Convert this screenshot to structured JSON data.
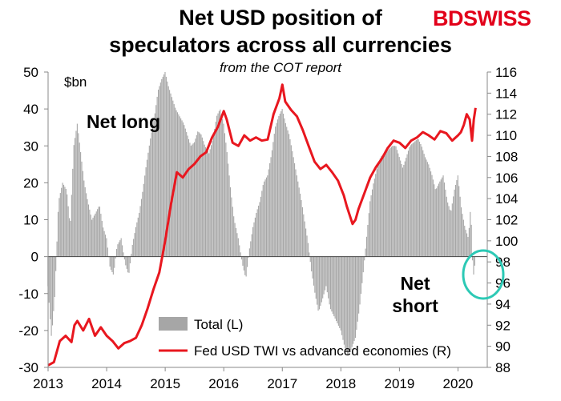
{
  "title_line1": "Net USD position of",
  "title_line2": "speculators across all currencies",
  "subtitle": "from the COT report",
  "brand": {
    "part1": "BD",
    "part2": "SWISS"
  },
  "chart_data": {
    "type": "bar",
    "title": "Net USD position of speculators across all currencies",
    "subtitle": "from the COT report",
    "left_axis": {
      "unit_label": "$bn",
      "ylim": [
        -30,
        50
      ],
      "ticks": [
        "50",
        "40",
        "30",
        "20",
        "10",
        "0",
        "-10",
        "-20",
        "-30"
      ]
    },
    "right_axis": {
      "ylim": [
        88,
        116
      ],
      "ticks": [
        "116",
        "114",
        "112",
        "110",
        "108",
        "106",
        "104",
        "102",
        "100",
        "98",
        "96",
        "94",
        "92",
        "90",
        "88"
      ]
    },
    "x_axis": {
      "xlim": [
        2013.0,
        2020.5
      ],
      "ticks": [
        "2013",
        "2014",
        "2015",
        "2016",
        "2017",
        "2018",
        "2019",
        "2020"
      ]
    },
    "annotations": {
      "net_long": "Net long",
      "net_short_line1": "Net",
      "net_short_line2": "short"
    },
    "legend": [
      {
        "label": "Total (L)",
        "color": "#a6a6a6",
        "kind": "bar"
      },
      {
        "label": "Fed USD TWI vs advanced economies (R)",
        "color": "#e8171f",
        "kind": "line"
      }
    ],
    "series": [
      {
        "name": "Total (L)",
        "axis": "left",
        "color": "#a6a6a6",
        "points": [
          [
            2013.0,
            -8
          ],
          [
            2013.06,
            -22
          ],
          [
            2013.12,
            -10
          ],
          [
            2013.18,
            15
          ],
          [
            2013.25,
            20
          ],
          [
            2013.32,
            18
          ],
          [
            2013.38,
            8
          ],
          [
            2013.44,
            30
          ],
          [
            2013.5,
            36
          ],
          [
            2013.56,
            28
          ],
          [
            2013.62,
            20
          ],
          [
            2013.68,
            15
          ],
          [
            2013.75,
            10
          ],
          [
            2013.82,
            12
          ],
          [
            2013.88,
            14
          ],
          [
            2013.94,
            8
          ],
          [
            2014.0,
            5
          ],
          [
            2014.06,
            -3
          ],
          [
            2014.12,
            -5
          ],
          [
            2014.18,
            3
          ],
          [
            2014.25,
            5
          ],
          [
            2014.32,
            -2
          ],
          [
            2014.38,
            -5
          ],
          [
            2014.44,
            3
          ],
          [
            2014.5,
            8
          ],
          [
            2014.56,
            12
          ],
          [
            2014.62,
            18
          ],
          [
            2014.68,
            25
          ],
          [
            2014.75,
            32
          ],
          [
            2014.82,
            38
          ],
          [
            2014.88,
            45
          ],
          [
            2014.94,
            48
          ],
          [
            2015.0,
            50
          ],
          [
            2015.06,
            46
          ],
          [
            2015.12,
            43
          ],
          [
            2015.18,
            40
          ],
          [
            2015.25,
            38
          ],
          [
            2015.32,
            36
          ],
          [
            2015.38,
            33
          ],
          [
            2015.44,
            30
          ],
          [
            2015.5,
            31
          ],
          [
            2015.56,
            34
          ],
          [
            2015.62,
            33
          ],
          [
            2015.68,
            30
          ],
          [
            2015.75,
            28
          ],
          [
            2015.82,
            32
          ],
          [
            2015.88,
            38
          ],
          [
            2015.94,
            40
          ],
          [
            2016.0,
            36
          ],
          [
            2016.06,
            28
          ],
          [
            2016.12,
            18
          ],
          [
            2016.18,
            10
          ],
          [
            2016.25,
            5
          ],
          [
            2016.32,
            -2
          ],
          [
            2016.38,
            -6
          ],
          [
            2016.44,
            2
          ],
          [
            2016.5,
            8
          ],
          [
            2016.56,
            12
          ],
          [
            2016.62,
            15
          ],
          [
            2016.68,
            20
          ],
          [
            2016.75,
            22
          ],
          [
            2016.82,
            28
          ],
          [
            2016.88,
            35
          ],
          [
            2016.94,
            38
          ],
          [
            2017.0,
            40
          ],
          [
            2017.06,
            36
          ],
          [
            2017.12,
            33
          ],
          [
            2017.18,
            28
          ],
          [
            2017.25,
            22
          ],
          [
            2017.32,
            16
          ],
          [
            2017.38,
            10
          ],
          [
            2017.44,
            4
          ],
          [
            2017.5,
            -4
          ],
          [
            2017.56,
            -10
          ],
          [
            2017.62,
            -15
          ],
          [
            2017.68,
            -12
          ],
          [
            2017.75,
            -8
          ],
          [
            2017.82,
            -14
          ],
          [
            2017.88,
            -16
          ],
          [
            2017.94,
            -18
          ],
          [
            2018.0,
            -20
          ],
          [
            2018.06,
            -24
          ],
          [
            2018.12,
            -27
          ],
          [
            2018.18,
            -25
          ],
          [
            2018.25,
            -22
          ],
          [
            2018.32,
            -14
          ],
          [
            2018.38,
            -5
          ],
          [
            2018.44,
            5
          ],
          [
            2018.5,
            15
          ],
          [
            2018.56,
            20
          ],
          [
            2018.62,
            24
          ],
          [
            2018.68,
            27
          ],
          [
            2018.75,
            28
          ],
          [
            2018.82,
            29
          ],
          [
            2018.88,
            30
          ],
          [
            2018.94,
            30
          ],
          [
            2019.0,
            27
          ],
          [
            2019.06,
            24
          ],
          [
            2019.12,
            27
          ],
          [
            2019.18,
            30
          ],
          [
            2019.25,
            31
          ],
          [
            2019.32,
            32
          ],
          [
            2019.38,
            30
          ],
          [
            2019.44,
            27
          ],
          [
            2019.5,
            25
          ],
          [
            2019.56,
            22
          ],
          [
            2019.62,
            18
          ],
          [
            2019.68,
            20
          ],
          [
            2019.75,
            22
          ],
          [
            2019.82,
            15
          ],
          [
            2019.88,
            12
          ],
          [
            2019.94,
            18
          ],
          [
            2020.0,
            22
          ],
          [
            2020.06,
            13
          ],
          [
            2020.12,
            8
          ],
          [
            2020.18,
            5
          ],
          [
            2020.22,
            14
          ],
          [
            2020.26,
            -6
          ],
          [
            2020.3,
            -1
          ]
        ]
      },
      {
        "name": "Fed USD TWI vs advanced economies (R)",
        "axis": "right",
        "color": "#e8171f",
        "points": [
          [
            2013.0,
            88.2
          ],
          [
            2013.1,
            88.5
          ],
          [
            2013.2,
            90.5
          ],
          [
            2013.3,
            91.0
          ],
          [
            2013.4,
            90.4
          ],
          [
            2013.45,
            92.0
          ],
          [
            2013.5,
            92.4
          ],
          [
            2013.6,
            91.5
          ],
          [
            2013.7,
            92.6
          ],
          [
            2013.8,
            91.0
          ],
          [
            2013.9,
            91.8
          ],
          [
            2014.0,
            91.0
          ],
          [
            2014.1,
            90.5
          ],
          [
            2014.2,
            89.8
          ],
          [
            2014.3,
            90.3
          ],
          [
            2014.4,
            90.5
          ],
          [
            2014.5,
            90.8
          ],
          [
            2014.6,
            92.0
          ],
          [
            2014.7,
            93.6
          ],
          [
            2014.8,
            95.4
          ],
          [
            2014.9,
            97.0
          ],
          [
            2015.0,
            100.0
          ],
          [
            2015.1,
            103.5
          ],
          [
            2015.2,
            106.5
          ],
          [
            2015.3,
            106.0
          ],
          [
            2015.4,
            106.8
          ],
          [
            2015.5,
            107.3
          ],
          [
            2015.6,
            108.0
          ],
          [
            2015.7,
            108.4
          ],
          [
            2015.8,
            109.8
          ],
          [
            2015.9,
            110.8
          ],
          [
            2016.0,
            112.3
          ],
          [
            2016.05,
            111.5
          ],
          [
            2016.15,
            109.3
          ],
          [
            2016.25,
            109.0
          ],
          [
            2016.35,
            110.0
          ],
          [
            2016.45,
            109.5
          ],
          [
            2016.55,
            109.8
          ],
          [
            2016.65,
            109.5
          ],
          [
            2016.75,
            109.6
          ],
          [
            2016.85,
            112.0
          ],
          [
            2016.95,
            113.5
          ],
          [
            2017.0,
            114.8
          ],
          [
            2017.05,
            113.2
          ],
          [
            2017.15,
            112.4
          ],
          [
            2017.25,
            111.8
          ],
          [
            2017.35,
            110.5
          ],
          [
            2017.45,
            109.0
          ],
          [
            2017.55,
            107.5
          ],
          [
            2017.65,
            106.8
          ],
          [
            2017.75,
            107.2
          ],
          [
            2017.85,
            106.5
          ],
          [
            2017.95,
            105.7
          ],
          [
            2018.05,
            104.3
          ],
          [
            2018.1,
            103.3
          ],
          [
            2018.2,
            101.6
          ],
          [
            2018.25,
            102.0
          ],
          [
            2018.3,
            103.0
          ],
          [
            2018.4,
            104.5
          ],
          [
            2018.5,
            106.0
          ],
          [
            2018.6,
            107.0
          ],
          [
            2018.7,
            107.8
          ],
          [
            2018.8,
            108.8
          ],
          [
            2018.9,
            109.5
          ],
          [
            2019.0,
            109.3
          ],
          [
            2019.1,
            108.8
          ],
          [
            2019.2,
            109.5
          ],
          [
            2019.3,
            109.8
          ],
          [
            2019.4,
            110.3
          ],
          [
            2019.5,
            110.0
          ],
          [
            2019.6,
            109.6
          ],
          [
            2019.7,
            110.4
          ],
          [
            2019.8,
            110.2
          ],
          [
            2019.9,
            109.5
          ],
          [
            2020.0,
            110.0
          ],
          [
            2020.05,
            110.3
          ],
          [
            2020.1,
            111.0
          ],
          [
            2020.15,
            112.0
          ],
          [
            2020.2,
            111.5
          ],
          [
            2020.24,
            109.5
          ],
          [
            2020.27,
            111.5
          ],
          [
            2020.3,
            112.6
          ]
        ]
      }
    ]
  }
}
